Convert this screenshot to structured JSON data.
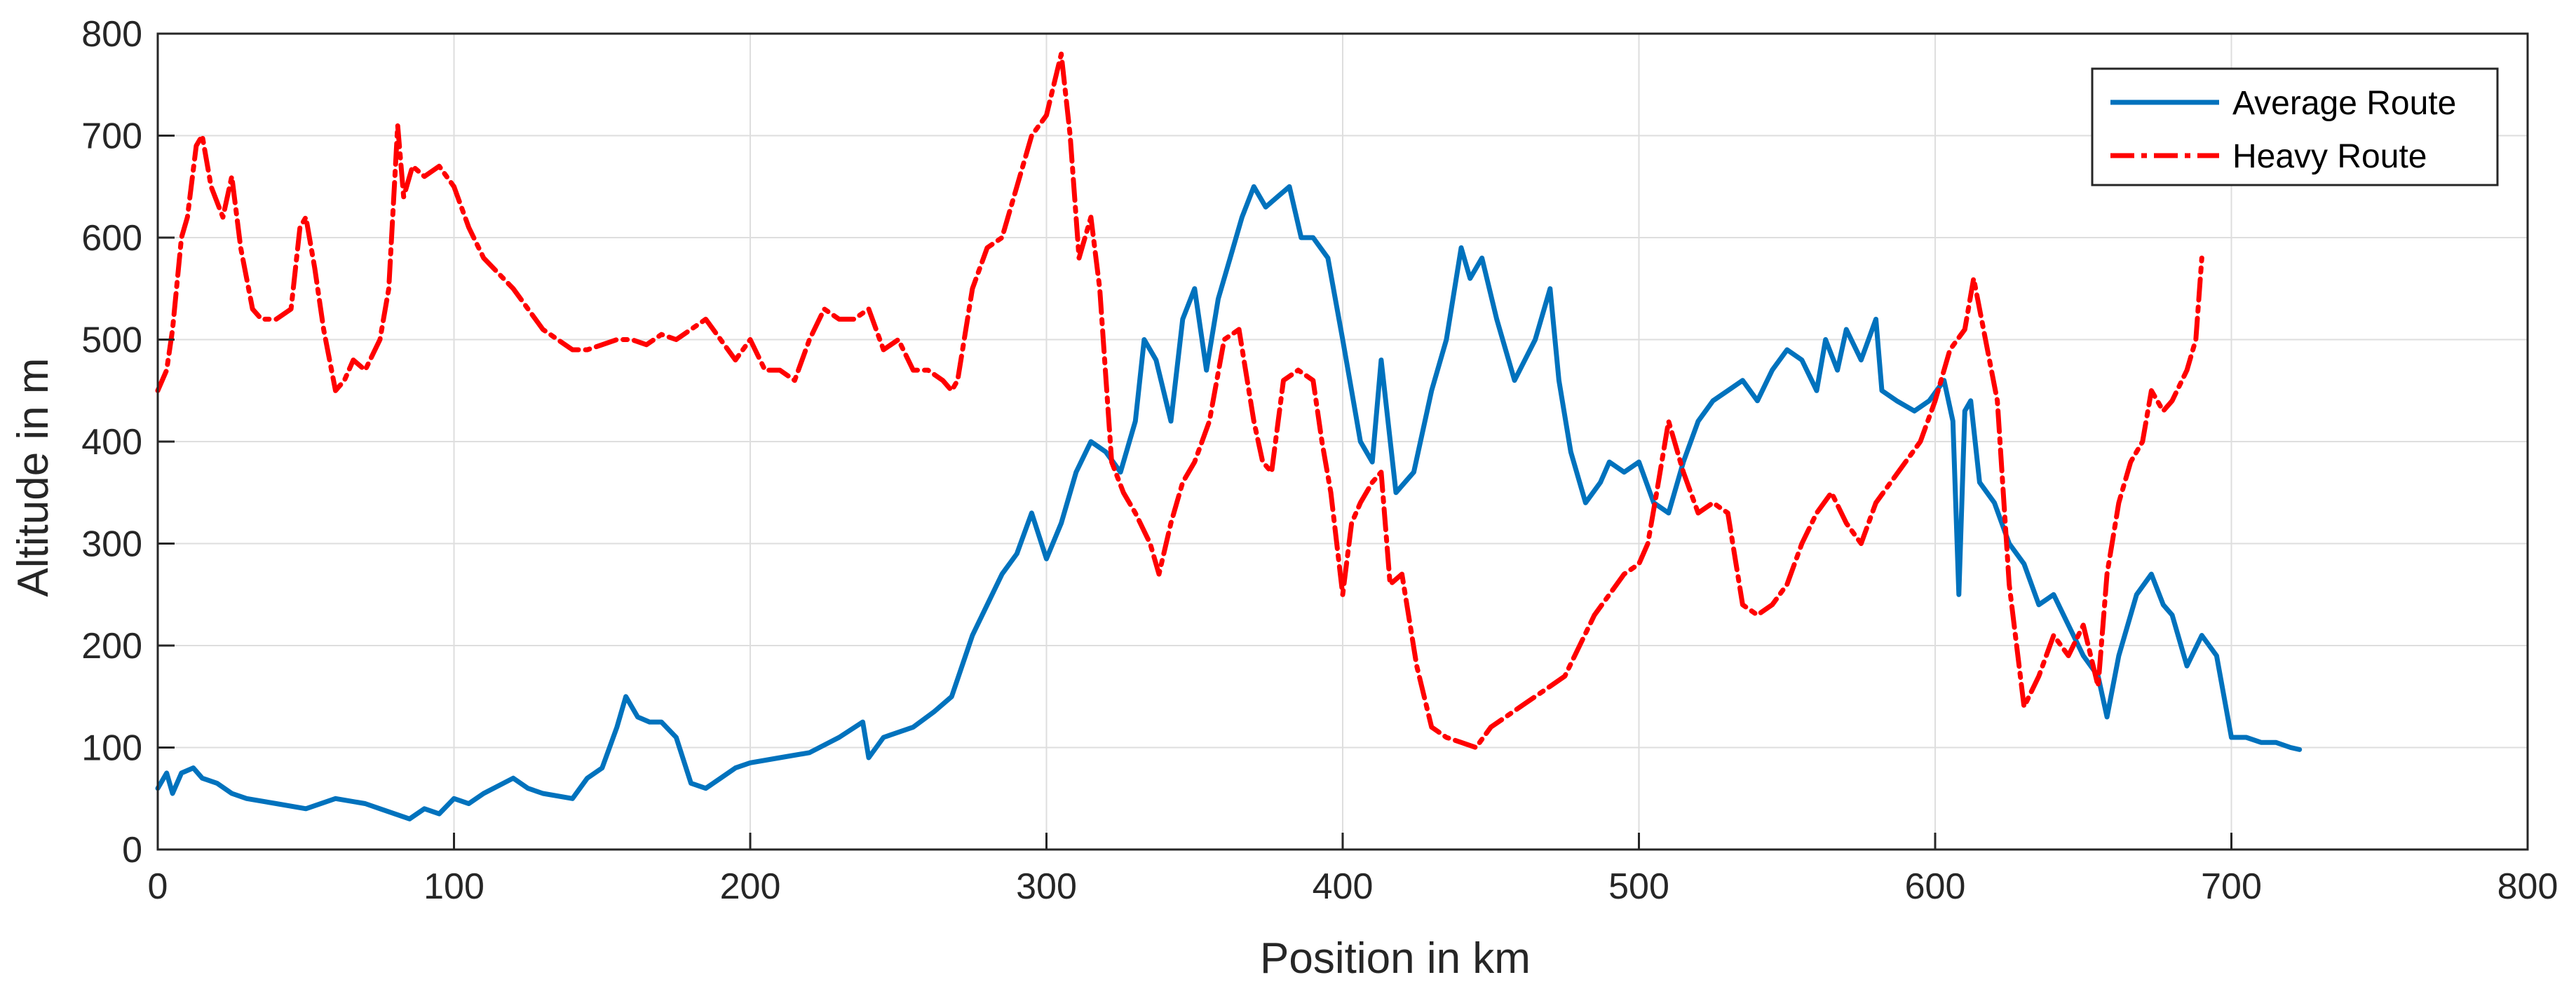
{
  "chart_data": {
    "type": "line",
    "title": "",
    "xlabel": "Position in km",
    "ylabel": "Altitude in m",
    "xlim": [
      0,
      800
    ],
    "ylim": [
      0,
      800
    ],
    "xticks": [
      "0",
      "100",
      "200",
      "300",
      "400",
      "500",
      "600",
      "700",
      "800"
    ],
    "yticks": [
      "0",
      "100",
      "200",
      "300",
      "400",
      "500",
      "600",
      "700",
      "800"
    ],
    "grid": true,
    "legend_position": "top-right",
    "series": [
      {
        "name": "Average Route",
        "color": "#0072BD",
        "style": "solid",
        "x": [
          0,
          3,
          5,
          8,
          12,
          15,
          20,
          25,
          30,
          40,
          50,
          60,
          70,
          75,
          80,
          85,
          90,
          95,
          100,
          105,
          110,
          120,
          125,
          130,
          140,
          145,
          150,
          155,
          158,
          162,
          166,
          170,
          175,
          180,
          185,
          190,
          195,
          200,
          210,
          220,
          230,
          238,
          240,
          245,
          255,
          262,
          268,
          275,
          280,
          285,
          290,
          295,
          300,
          305,
          310,
          315,
          320,
          325,
          330,
          333,
          337,
          342,
          346,
          350,
          354,
          358,
          362,
          366,
          370,
          374,
          378,
          382,
          386,
          390,
          395,
          400,
          403,
          406,
          410,
          413,
          418,
          424,
          430,
          435,
          440,
          443,
          447,
          452,
          458,
          465,
          470,
          473,
          477,
          482,
          487,
          490,
          495,
          500,
          505,
          510,
          515,
          520,
          525,
          530,
          535,
          540,
          545,
          550,
          555,
          560,
          563,
          567,
          570,
          575,
          580,
          582,
          587,
          593,
          598,
          603,
          606,
          608,
          610,
          612,
          615,
          620,
          625,
          630,
          635,
          640,
          645,
          650,
          655,
          658,
          662,
          668,
          673,
          677,
          680,
          685,
          690,
          695,
          700,
          705,
          710,
          715,
          720,
          723
        ],
        "y": [
          60,
          75,
          55,
          75,
          80,
          70,
          65,
          55,
          50,
          45,
          40,
          50,
          45,
          40,
          35,
          30,
          40,
          35,
          50,
          45,
          55,
          70,
          60,
          55,
          50,
          70,
          80,
          120,
          150,
          130,
          125,
          125,
          110,
          65,
          60,
          70,
          80,
          85,
          90,
          95,
          110,
          125,
          90,
          110,
          120,
          135,
          150,
          210,
          240,
          270,
          290,
          330,
          285,
          320,
          370,
          400,
          390,
          370,
          420,
          500,
          480,
          420,
          520,
          550,
          470,
          540,
          580,
          620,
          650,
          630,
          640,
          650,
          600,
          600,
          580,
          500,
          450,
          400,
          380,
          480,
          350,
          370,
          450,
          500,
          590,
          560,
          580,
          520,
          460,
          500,
          550,
          460,
          390,
          340,
          360,
          380,
          370,
          380,
          340,
          330,
          380,
          420,
          440,
          450,
          460,
          440,
          470,
          490,
          480,
          450,
          500,
          470,
          510,
          480,
          520,
          450,
          440,
          430,
          440,
          460,
          420,
          250,
          430,
          440,
          360,
          340,
          300,
          280,
          240,
          250,
          220,
          190,
          170,
          130,
          190,
          250,
          270,
          240,
          230,
          180,
          210,
          190,
          110,
          110,
          105,
          105,
          100,
          98
        ]
      },
      {
        "name": "Heavy Route",
        "color": "#FF0000",
        "style": "dash-dot",
        "x": [
          0,
          3,
          5,
          8,
          10,
          13,
          15,
          18,
          22,
          25,
          28,
          32,
          35,
          40,
          45,
          48,
          50,
          53,
          56,
          60,
          63,
          66,
          70,
          75,
          78,
          81,
          83,
          86,
          90,
          95,
          100,
          105,
          110,
          120,
          130,
          140,
          145,
          150,
          155,
          160,
          165,
          170,
          175,
          180,
          185,
          190,
          195,
          200,
          205,
          210,
          215,
          220,
          225,
          230,
          235,
          240,
          245,
          250,
          255,
          260,
          265,
          268,
          270,
          275,
          280,
          285,
          290,
          295,
          300,
          305,
          308,
          311,
          315,
          318,
          322,
          326,
          330,
          335,
          338,
          342,
          346,
          350,
          355,
          360,
          365,
          370,
          373,
          376,
          380,
          385,
          390,
          393,
          396,
          400,
          403,
          406,
          410,
          413,
          416,
          420,
          425,
          430,
          435,
          440,
          445,
          450,
          455,
          460,
          465,
          470,
          475,
          480,
          485,
          490,
          495,
          500,
          503,
          506,
          510,
          515,
          520,
          525,
          530,
          535,
          540,
          545,
          550,
          555,
          560,
          565,
          570,
          575,
          580,
          585,
          590,
          595,
          600,
          605,
          610,
          613,
          617,
          621,
          625,
          630,
          635,
          640,
          645,
          650,
          655,
          658,
          662,
          666,
          670,
          673,
          677,
          680,
          685,
          688,
          690
        ],
        "y": [
          450,
          470,
          510,
          600,
          620,
          690,
          700,
          650,
          620,
          660,
          590,
          530,
          520,
          520,
          530,
          610,
          620,
          570,
          510,
          450,
          460,
          480,
          470,
          500,
          550,
          710,
          640,
          670,
          660,
          670,
          650,
          610,
          580,
          550,
          510,
          490,
          490,
          495,
          500,
          500,
          495,
          505,
          500,
          510,
          520,
          500,
          480,
          500,
          470,
          470,
          460,
          500,
          530,
          520,
          520,
          530,
          490,
          500,
          470,
          470,
          460,
          450,
          460,
          550,
          590,
          600,
          650,
          700,
          720,
          780,
          700,
          580,
          620,
          550,
          380,
          350,
          330,
          300,
          270,
          320,
          360,
          380,
          420,
          500,
          510,
          420,
          380,
          370,
          460,
          470,
          460,
          400,
          350,
          250,
          320,
          340,
          360,
          370,
          260,
          270,
          180,
          120,
          110,
          105,
          100,
          120,
          130,
          140,
          150,
          160,
          170,
          200,
          230,
          250,
          270,
          280,
          300,
          350,
          420,
          370,
          330,
          340,
          330,
          240,
          230,
          240,
          260,
          300,
          330,
          350,
          320,
          300,
          340,
          360,
          380,
          400,
          440,
          490,
          510,
          560,
          500,
          440,
          260,
          140,
          170,
          210,
          190,
          220,
          160,
          270,
          340,
          380,
          400,
          450,
          430,
          440,
          470,
          500,
          580
        ]
      }
    ]
  }
}
